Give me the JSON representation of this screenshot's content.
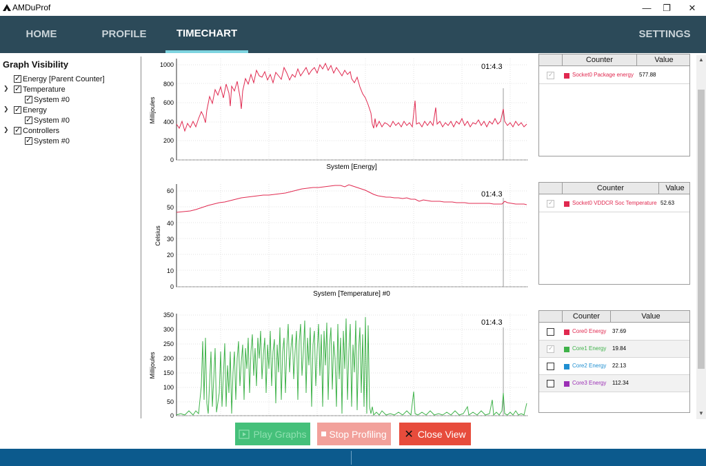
{
  "window": {
    "title": "AMDuProf",
    "minimize": "—",
    "restore": "❐",
    "close": "✕"
  },
  "nav": {
    "tabs": [
      {
        "label": "HOME",
        "active": false
      },
      {
        "label": "PROFILE",
        "active": false
      },
      {
        "label": "TIMECHART",
        "active": true
      }
    ],
    "settings": "SETTINGS"
  },
  "tree": {
    "heading": "Graph Visibility",
    "items": [
      {
        "label": "Energy [Parent Counter]",
        "checked": true,
        "expanded": null
      },
      {
        "label": "Temperature",
        "checked": true,
        "expanded": true
      },
      {
        "label": "System #0",
        "checked": true
      },
      {
        "label": "Energy",
        "checked": true,
        "expanded": true
      },
      {
        "label": "System #0",
        "checked": true
      },
      {
        "label": "Controllers",
        "checked": true,
        "expanded": true
      },
      {
        "label": "System #0",
        "checked": true
      }
    ]
  },
  "graphs": [
    {
      "title": "System [Energy]",
      "ylabel": "Millijoules",
      "timestamp": "01:4.3",
      "color": "#e0284f",
      "yticks": [
        "1000",
        "800",
        "600",
        "400",
        "200",
        "0"
      ]
    },
    {
      "title": "System [Temperature] #0",
      "ylabel": "Celsius",
      "timestamp": "01:4.3",
      "color": "#e0284f",
      "yticks": [
        "60",
        "50",
        "40",
        "30",
        "20",
        "10",
        "0"
      ]
    },
    {
      "title": "",
      "ylabel": "Millijoules",
      "timestamp": "01:4.3",
      "color": "#3fb24a",
      "yticks": [
        "350",
        "300",
        "250",
        "200",
        "150",
        "100",
        "50",
        "0"
      ]
    }
  ],
  "tables": [
    {
      "headers": [
        "Counter",
        "Value"
      ],
      "rows": [
        {
          "checked": true,
          "disabled": true,
          "name": "Socket0 Package energy",
          "value": "577.88",
          "color": "#e0284f"
        }
      ]
    },
    {
      "headers": [
        "Counter",
        "Value"
      ],
      "rows": [
        {
          "checked": true,
          "disabled": true,
          "name": "Socket0 VDDCR Soc Temperature",
          "value": "52.63",
          "color": "#e0284f"
        }
      ]
    },
    {
      "headers": [
        "Counter",
        "Value"
      ],
      "rows": [
        {
          "checked": false,
          "name": "Core0 Energy",
          "value": "37.69",
          "color": "#e0284f"
        },
        {
          "checked": true,
          "disabled": true,
          "name": "Core1 Energy",
          "value": "19.84",
          "color": "#3fb24a"
        },
        {
          "checked": false,
          "name": "Core2 Energy",
          "value": "22.13",
          "color": "#1f8fd1"
        },
        {
          "checked": false,
          "name": "Core3 Energy",
          "value": "112.34",
          "color": "#9b2fb5"
        }
      ]
    }
  ],
  "buttons": {
    "play": "Play Graphs",
    "stop": "Stop Profiling",
    "close": "Close View"
  }
}
